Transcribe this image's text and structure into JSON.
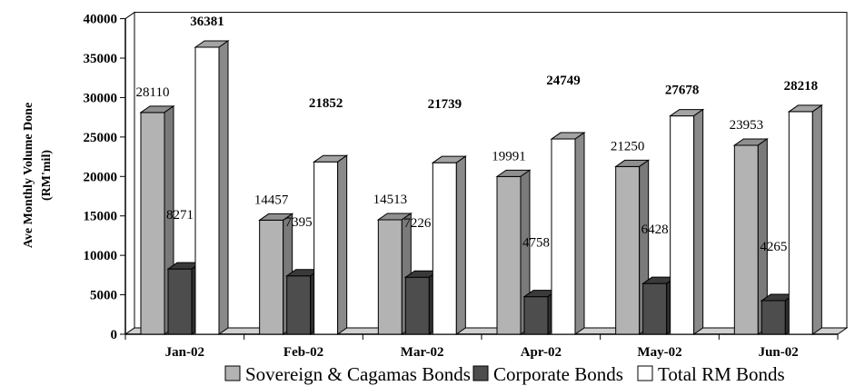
{
  "chart_data": {
    "type": "bar",
    "title": "",
    "ylabel": "Ave Monthly Volume Done",
    "ylabel_unit": "(RM'mil)",
    "xlabel": "",
    "categories": [
      "Jan-02",
      "Feb-02",
      "Mar-02",
      "Apr-02",
      "May-02",
      "Jun-02"
    ],
    "series": [
      {
        "name": "Sovereign & Cagamas Bonds",
        "values": [
          28110,
          14457,
          14513,
          19991,
          21250,
          23953
        ],
        "color": "#b3b3b3",
        "side": "#7a7a7a",
        "top": "#8f8f8f",
        "bold_labels": false
      },
      {
        "name": "Corporate Bonds",
        "values": [
          8271,
          7395,
          7226,
          4758,
          6428,
          4265
        ],
        "color": "#4d4d4d",
        "side": "#2e2e2e",
        "top": "#3a3a3a",
        "bold_labels": false
      },
      {
        "name": "Total RM Bonds",
        "values": [
          36381,
          21852,
          21739,
          24749,
          27678,
          28218
        ],
        "color": "#ffffff",
        "side": "#8a8a8a",
        "top": "#a3a3a3",
        "bold_labels": true
      }
    ],
    "ylim": [
      0,
      40000
    ],
    "yticks": [
      0,
      5000,
      10000,
      15000,
      20000,
      25000,
      30000,
      35000,
      40000
    ],
    "grid": false,
    "legend_position": "bottom",
    "style": "3d-clustered-column"
  }
}
